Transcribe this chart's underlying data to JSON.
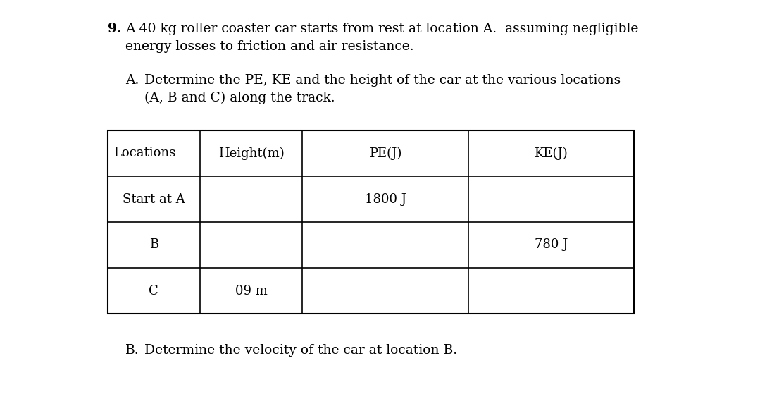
{
  "background_color": "#ffffff",
  "question_number": "9.",
  "question_text_line1": "A 40 kg roller coaster car starts from rest at location A.  assuming negligible",
  "question_text_line2": "energy losses to friction and air resistance.",
  "part_a_label": "A.",
  "part_a_text_line1": "Determine the PE, KE and the height of the car at the various locations",
  "part_a_text_line2": "(A, B and C) along the track.",
  "table_headers": [
    "Locations",
    "Height(m)",
    "PE(J)",
    "KE(J)"
  ],
  "table_rows": [
    [
      "Start at A",
      "",
      "1800 J",
      ""
    ],
    [
      "B",
      "",
      "",
      "780 J"
    ],
    [
      "C",
      "09 m",
      "",
      ""
    ]
  ],
  "part_b_label": "B.",
  "part_b_text": "Determine the velocity of the car at location B.",
  "font_size_main": 13.5,
  "font_size_table": 13.0,
  "font_family": "DejaVu Serif"
}
